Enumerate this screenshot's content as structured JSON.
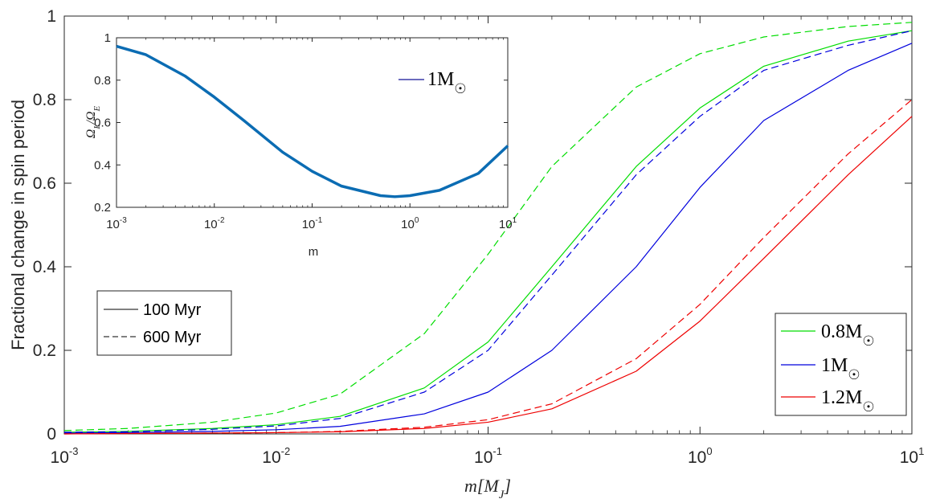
{
  "chart_data": [
    {
      "type": "line",
      "name": "main",
      "xscale": "log",
      "xlim": [
        0.001,
        10
      ],
      "ylim": [
        0,
        1
      ],
      "xlabel": "m[M_J]",
      "xlabel_text": "m[M",
      "xlabel_sub": "J",
      "xlabel_close": "]",
      "ylabel": "Fractional change in spin period",
      "xticks": [
        {
          "base": "10",
          "exp": "-3"
        },
        {
          "base": "10",
          "exp": "-2"
        },
        {
          "base": "10",
          "exp": "-1"
        },
        {
          "base": "10",
          "exp": "0"
        },
        {
          "base": "10",
          "exp": "1"
        }
      ],
      "yticks": [
        "0",
        "0.2",
        "0.4",
        "0.6",
        "0.8",
        "1"
      ],
      "x": [
        0.001,
        0.002,
        0.005,
        0.01,
        0.02,
        0.05,
        0.1,
        0.2,
        0.5,
        1,
        2,
        5,
        10
      ],
      "series": [
        {
          "name": "0.8M☉ 100 Myr",
          "color": "#00dd00",
          "dash": "solid",
          "values": [
            0.004,
            0.006,
            0.013,
            0.022,
            0.042,
            0.11,
            0.22,
            0.4,
            0.64,
            0.78,
            0.88,
            0.94,
            0.965
          ]
        },
        {
          "name": "0.8M☉ 600 Myr",
          "color": "#00dd00",
          "dash": "dashed",
          "values": [
            0.008,
            0.013,
            0.028,
            0.05,
            0.095,
            0.24,
            0.43,
            0.64,
            0.83,
            0.91,
            0.95,
            0.975,
            0.985
          ]
        },
        {
          "name": "1M☉ 100 Myr",
          "color": "#0000dd",
          "dash": "solid",
          "values": [
            0.002,
            0.003,
            0.006,
            0.01,
            0.018,
            0.048,
            0.1,
            0.2,
            0.4,
            0.59,
            0.75,
            0.87,
            0.935
          ]
        },
        {
          "name": "1M☉ 600 Myr",
          "color": "#0000dd",
          "dash": "dashed",
          "values": [
            0.004,
            0.005,
            0.011,
            0.019,
            0.037,
            0.1,
            0.2,
            0.38,
            0.62,
            0.76,
            0.87,
            0.93,
            0.965
          ]
        },
        {
          "name": "1.2M☉ 100 Myr",
          "color": "#ee0000",
          "dash": "solid",
          "values": [
            0.0,
            0.001,
            0.002,
            0.003,
            0.005,
            0.013,
            0.028,
            0.06,
            0.15,
            0.27,
            0.42,
            0.62,
            0.76
          ]
        },
        {
          "name": "1.2M☉ 600 Myr",
          "color": "#ee0000",
          "dash": "dashed",
          "values": [
            0.0,
            0.001,
            0.002,
            0.003,
            0.006,
            0.016,
            0.034,
            0.072,
            0.18,
            0.31,
            0.47,
            0.67,
            0.8
          ]
        }
      ],
      "legend_time": [
        {
          "label": "100 Myr",
          "dash": "solid",
          "color": "#000000"
        },
        {
          "label": "600 Myr",
          "dash": "dashed",
          "color": "#000000"
        }
      ],
      "legend_mass": [
        {
          "base": "0.8M",
          "sym": "☉",
          "color": "#00dd00"
        },
        {
          "base": "1M",
          "sym": "☉",
          "color": "#0000dd"
        },
        {
          "base": "1.2M",
          "sym": "☉",
          "color": "#ee0000"
        }
      ],
      "legend_placement": "time legend mid-left, mass legend bottom-right"
    },
    {
      "type": "line",
      "name": "inset",
      "xscale": "log",
      "xlim": [
        0.001,
        10
      ],
      "ylim": [
        0.2,
        1
      ],
      "xlabel": "m",
      "ylabel": "Ω_L/Ω_E",
      "ylabel_parts": {
        "num": "Ω",
        "num_sub": "L",
        "slash": "/",
        "den": "Ω",
        "den_sub": "E"
      },
      "xticks": [
        {
          "base": "10",
          "exp": "-3"
        },
        {
          "base": "10",
          "exp": "-2"
        },
        {
          "base": "10",
          "exp": "-1"
        },
        {
          "base": "10",
          "exp": "0"
        },
        {
          "base": "10",
          "exp": "1"
        }
      ],
      "yticks": [
        "0.2",
        "0.4",
        "0.6",
        "0.8",
        "1"
      ],
      "x": [
        0.001,
        0.002,
        0.005,
        0.01,
        0.02,
        0.05,
        0.1,
        0.2,
        0.5,
        0.7,
        1,
        2,
        5,
        10
      ],
      "series": [
        {
          "name": "1M☉",
          "color": "#0b6cb3",
          "values": [
            0.96,
            0.92,
            0.82,
            0.72,
            0.61,
            0.46,
            0.37,
            0.3,
            0.255,
            0.25,
            0.255,
            0.28,
            0.36,
            0.49
          ]
        }
      ],
      "legend": {
        "base": "1M",
        "sym": "☉",
        "color": "#3a3aa8"
      },
      "legend_placement": "top-right"
    }
  ]
}
